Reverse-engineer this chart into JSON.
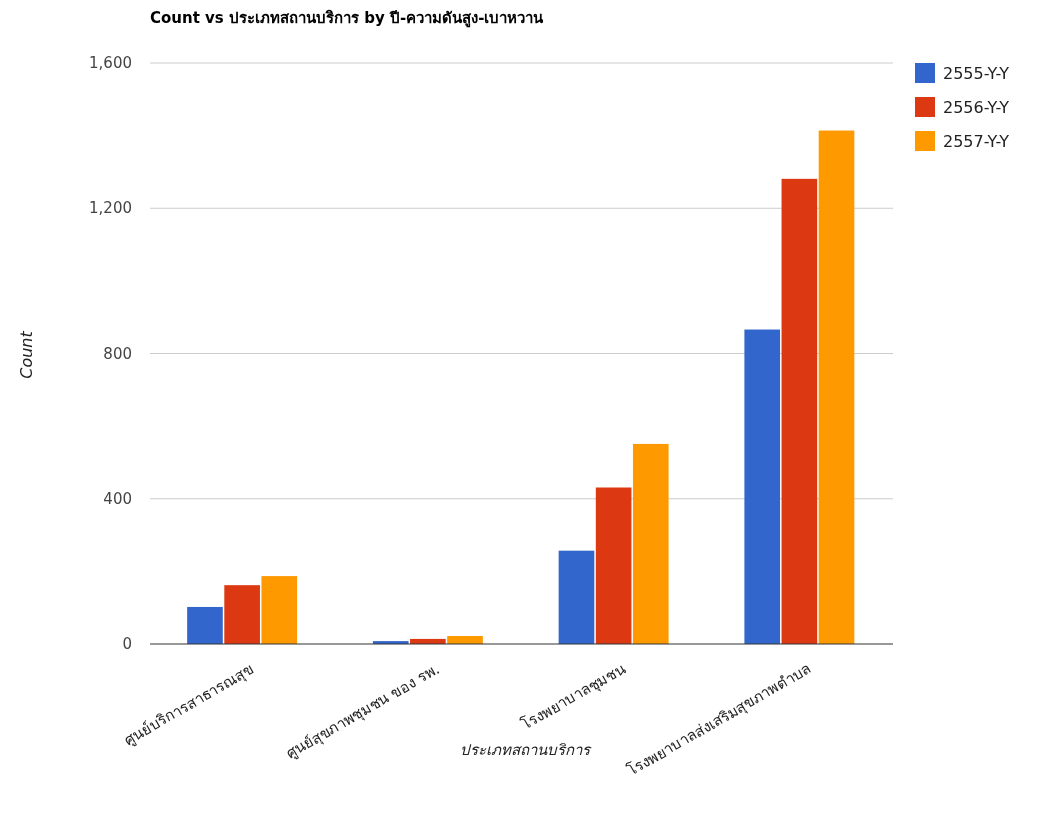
{
  "chart_data": {
    "type": "bar",
    "title": "Count vs ประเภทสถานบริการ by ปี-ความดันสูง-เบาหวาน",
    "xlabel": "ประเภทสถานบริการ",
    "ylabel": "Count",
    "categories": [
      "ศูนย์บริการสาธารณสุข",
      "ศูนย์สุขภาพชุมชน ของ รพ.",
      "โรงพยาบาลชุมชน",
      "โรงพยาบาลส่งเสริมสุขภาพตำบล"
    ],
    "series": [
      {
        "name": "2555-Y-Y",
        "color": "#3366cc",
        "values": [
          102,
          8,
          257,
          866
        ]
      },
      {
        "name": "2556-Y-Y",
        "color": "#dc3912",
        "values": [
          162,
          14,
          431,
          1281
        ]
      },
      {
        "name": "2557-Y-Y",
        "color": "#ff9900",
        "values": [
          187,
          22,
          551,
          1414
        ]
      }
    ],
    "ylim": [
      0,
      1600
    ],
    "yticks": [
      0,
      400,
      800,
      {
        "value": 1200,
        "label": "1,200"
      },
      {
        "value": 1600,
        "label": "1,600"
      }
    ],
    "grid": "y",
    "legend": "top right"
  }
}
